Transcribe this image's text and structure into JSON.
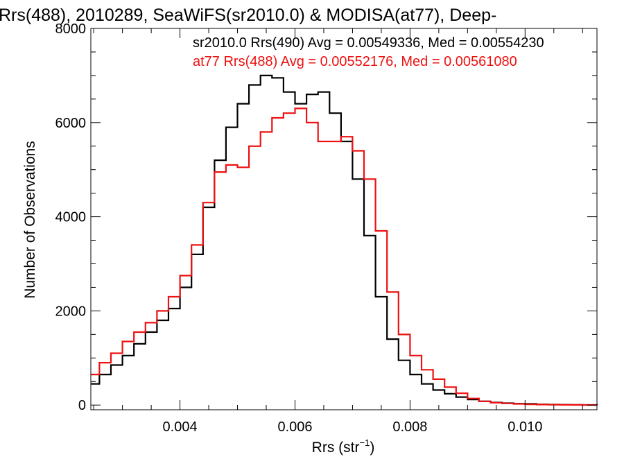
{
  "chart_data": {
    "type": "line",
    "title": "Rrs(488), 2010289, SeaWiFS(sr2010.0) & MODISA(at77), Deep-",
    "xlabel_main": "Rrs (str",
    "xlabel_sup": "−1",
    "xlabel_tail": ")",
    "ylabel": "Number of Observations",
    "xlim": [
      0.00245,
      0.01125
    ],
    "ylim": [
      -100,
      8000
    ],
    "x_ticks": [
      0.004,
      0.006,
      0.008,
      0.01
    ],
    "x_tick_labels": [
      "0.004",
      "0.006",
      "0.008",
      "0.010"
    ],
    "y_ticks": [
      0,
      2000,
      4000,
      6000,
      8000
    ],
    "y_tick_labels": [
      "0",
      "2000",
      "4000",
      "6000",
      "8000"
    ],
    "grid": false,
    "legend_position": "top-right",
    "series": [
      {
        "name": "sr2010.0 Rrs(490) Avg = 0.00549336, Med = 0.00554230",
        "color": "#000000",
        "x": [
          0.00245,
          0.0026,
          0.0028,
          0.003,
          0.0032,
          0.0034,
          0.0036,
          0.0038,
          0.004,
          0.0042,
          0.0044,
          0.0046,
          0.0048,
          0.005,
          0.0052,
          0.0054,
          0.0056,
          0.0058,
          0.006,
          0.0062,
          0.0064,
          0.0066,
          0.0068,
          0.007,
          0.0072,
          0.0074,
          0.0076,
          0.0078,
          0.008,
          0.0082,
          0.0084,
          0.0086,
          0.0088,
          0.009,
          0.0092,
          0.0094,
          0.0096,
          0.0098,
          0.01,
          0.0102,
          0.0104,
          0.0106,
          0.0108,
          0.011,
          0.01125
        ],
        "y": [
          450,
          650,
          850,
          1050,
          1300,
          1550,
          1800,
          2050,
          2500,
          3200,
          4200,
          5200,
          5900,
          6400,
          6800,
          7000,
          6950,
          6650,
          6400,
          6600,
          6650,
          6200,
          5600,
          4800,
          3600,
          2300,
          1400,
          950,
          650,
          450,
          320,
          240,
          170,
          120,
          80,
          55,
          40,
          30,
          25,
          15,
          10,
          8,
          5,
          3,
          2
        ]
      },
      {
        "name": "at77 Rrs(488) Avg = 0.00552176, Med = 0.00561080",
        "color": "#ee1111",
        "x": [
          0.00245,
          0.0026,
          0.0028,
          0.003,
          0.0032,
          0.0034,
          0.0036,
          0.0038,
          0.004,
          0.0042,
          0.0044,
          0.0046,
          0.0048,
          0.005,
          0.0052,
          0.0054,
          0.0056,
          0.0058,
          0.006,
          0.0062,
          0.0064,
          0.0066,
          0.0068,
          0.007,
          0.0072,
          0.0074,
          0.0076,
          0.0078,
          0.008,
          0.0082,
          0.0084,
          0.0086,
          0.0088,
          0.009,
          0.0092,
          0.0094,
          0.0096,
          0.0098,
          0.01,
          0.0102,
          0.0104,
          0.0106,
          0.0108,
          0.011,
          0.01125
        ],
        "y": [
          650,
          900,
          1100,
          1350,
          1550,
          1750,
          2000,
          2300,
          2750,
          3400,
          4300,
          4950,
          5100,
          5050,
          5500,
          5800,
          6100,
          6200,
          6300,
          6000,
          5600,
          5600,
          5700,
          5400,
          4800,
          3700,
          2400,
          1500,
          1050,
          750,
          550,
          380,
          250,
          140,
          80,
          50,
          35,
          25,
          15,
          10,
          8,
          5,
          3,
          2,
          1
        ]
      }
    ]
  }
}
